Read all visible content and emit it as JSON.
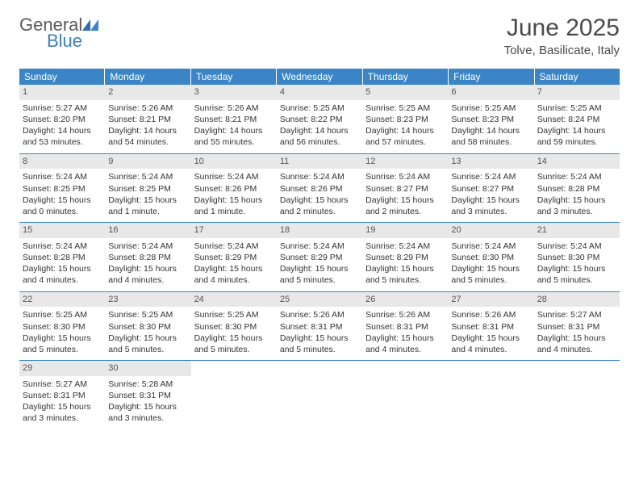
{
  "logo": {
    "general": "General",
    "blue": "Blue"
  },
  "header": {
    "title": "June 2025",
    "location": "Tolve, Basilicate, Italy"
  },
  "colors": {
    "header_bg": "#3b85c6",
    "header_text": "#ffffff",
    "daynum_bg": "#e8e8e8",
    "daynum_text": "#555555",
    "body_text": "#333333",
    "rule": "#3b85c6",
    "logo_gray": "#5a5a5a",
    "logo_blue": "#3b7fc4",
    "page_bg": "#ffffff"
  },
  "weekdays": [
    "Sunday",
    "Monday",
    "Tuesday",
    "Wednesday",
    "Thursday",
    "Friday",
    "Saturday"
  ],
  "labels": {
    "sunrise": "Sunrise:",
    "sunset": "Sunset:",
    "daylight": "Daylight:"
  },
  "weeks": [
    [
      {
        "n": "1",
        "sr": "5:27 AM",
        "ss": "8:20 PM",
        "dl": "14 hours and 53 minutes."
      },
      {
        "n": "2",
        "sr": "5:26 AM",
        "ss": "8:21 PM",
        "dl": "14 hours and 54 minutes."
      },
      {
        "n": "3",
        "sr": "5:26 AM",
        "ss": "8:21 PM",
        "dl": "14 hours and 55 minutes."
      },
      {
        "n": "4",
        "sr": "5:25 AM",
        "ss": "8:22 PM",
        "dl": "14 hours and 56 minutes."
      },
      {
        "n": "5",
        "sr": "5:25 AM",
        "ss": "8:23 PM",
        "dl": "14 hours and 57 minutes."
      },
      {
        "n": "6",
        "sr": "5:25 AM",
        "ss": "8:23 PM",
        "dl": "14 hours and 58 minutes."
      },
      {
        "n": "7",
        "sr": "5:25 AM",
        "ss": "8:24 PM",
        "dl": "14 hours and 59 minutes."
      }
    ],
    [
      {
        "n": "8",
        "sr": "5:24 AM",
        "ss": "8:25 PM",
        "dl": "15 hours and 0 minutes."
      },
      {
        "n": "9",
        "sr": "5:24 AM",
        "ss": "8:25 PM",
        "dl": "15 hours and 1 minute."
      },
      {
        "n": "10",
        "sr": "5:24 AM",
        "ss": "8:26 PM",
        "dl": "15 hours and 1 minute."
      },
      {
        "n": "11",
        "sr": "5:24 AM",
        "ss": "8:26 PM",
        "dl": "15 hours and 2 minutes."
      },
      {
        "n": "12",
        "sr": "5:24 AM",
        "ss": "8:27 PM",
        "dl": "15 hours and 2 minutes."
      },
      {
        "n": "13",
        "sr": "5:24 AM",
        "ss": "8:27 PM",
        "dl": "15 hours and 3 minutes."
      },
      {
        "n": "14",
        "sr": "5:24 AM",
        "ss": "8:28 PM",
        "dl": "15 hours and 3 minutes."
      }
    ],
    [
      {
        "n": "15",
        "sr": "5:24 AM",
        "ss": "8:28 PM",
        "dl": "15 hours and 4 minutes."
      },
      {
        "n": "16",
        "sr": "5:24 AM",
        "ss": "8:28 PM",
        "dl": "15 hours and 4 minutes."
      },
      {
        "n": "17",
        "sr": "5:24 AM",
        "ss": "8:29 PM",
        "dl": "15 hours and 4 minutes."
      },
      {
        "n": "18",
        "sr": "5:24 AM",
        "ss": "8:29 PM",
        "dl": "15 hours and 5 minutes."
      },
      {
        "n": "19",
        "sr": "5:24 AM",
        "ss": "8:29 PM",
        "dl": "15 hours and 5 minutes."
      },
      {
        "n": "20",
        "sr": "5:24 AM",
        "ss": "8:30 PM",
        "dl": "15 hours and 5 minutes."
      },
      {
        "n": "21",
        "sr": "5:24 AM",
        "ss": "8:30 PM",
        "dl": "15 hours and 5 minutes."
      }
    ],
    [
      {
        "n": "22",
        "sr": "5:25 AM",
        "ss": "8:30 PM",
        "dl": "15 hours and 5 minutes."
      },
      {
        "n": "23",
        "sr": "5:25 AM",
        "ss": "8:30 PM",
        "dl": "15 hours and 5 minutes."
      },
      {
        "n": "24",
        "sr": "5:25 AM",
        "ss": "8:30 PM",
        "dl": "15 hours and 5 minutes."
      },
      {
        "n": "25",
        "sr": "5:26 AM",
        "ss": "8:31 PM",
        "dl": "15 hours and 5 minutes."
      },
      {
        "n": "26",
        "sr": "5:26 AM",
        "ss": "8:31 PM",
        "dl": "15 hours and 4 minutes."
      },
      {
        "n": "27",
        "sr": "5:26 AM",
        "ss": "8:31 PM",
        "dl": "15 hours and 4 minutes."
      },
      {
        "n": "28",
        "sr": "5:27 AM",
        "ss": "8:31 PM",
        "dl": "15 hours and 4 minutes."
      }
    ],
    [
      {
        "n": "29",
        "sr": "5:27 AM",
        "ss": "8:31 PM",
        "dl": "15 hours and 3 minutes."
      },
      {
        "n": "30",
        "sr": "5:28 AM",
        "ss": "8:31 PM",
        "dl": "15 hours and 3 minutes."
      },
      null,
      null,
      null,
      null,
      null
    ]
  ]
}
